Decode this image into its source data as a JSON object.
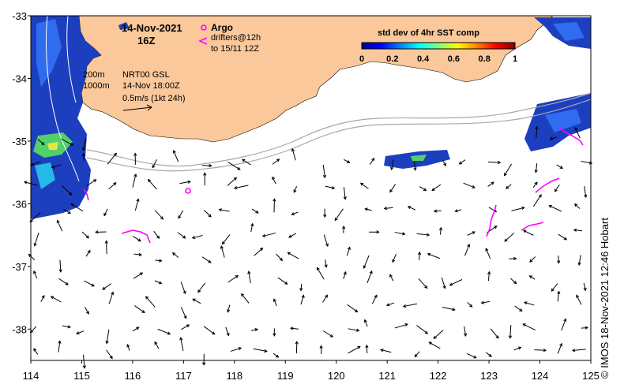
{
  "title": {
    "date": "14-Nov-2021",
    "hour": "16Z"
  },
  "legend": {
    "argo_label": "Argo",
    "drifter_line1": "drifters@12h",
    "drifter_line2": "to 15/11 12Z",
    "argo_color": "#ff00ff",
    "drifter_color": "#ff00ff"
  },
  "isobaths": {
    "label_200": "200m",
    "label_1000": "1000m"
  },
  "current_info": {
    "line1": "NRT00 GSL",
    "line2": "14-Nov 18:00Z",
    "line3": "0.5m/s (1kt 24h)"
  },
  "colorbar": {
    "title": "std dev of 4hr SST comp",
    "ticks": [
      "0",
      "0.2",
      "0.4",
      "0.6",
      "0.8",
      "1"
    ],
    "colors": [
      "#00008f",
      "#0000ff",
      "#0080ff",
      "#00ffff",
      "#80ff80",
      "#ffff00",
      "#ff8000",
      "#ff0000",
      "#800000"
    ]
  },
  "axes": {
    "x_ticks": [
      "114",
      "115",
      "116",
      "117",
      "118",
      "119",
      "120",
      "121",
      "122",
      "123",
      "124",
      "125"
    ],
    "y_ticks": [
      "-33",
      "-34",
      "-35",
      "-36",
      "-37",
      "-38"
    ],
    "lon_range": [
      114,
      125
    ],
    "lat_range": [
      -38.5,
      -33
    ]
  },
  "land_color": "#fac89a",
  "credit": "© IMOS 18-Nov-2021 12:46 Hobart"
}
